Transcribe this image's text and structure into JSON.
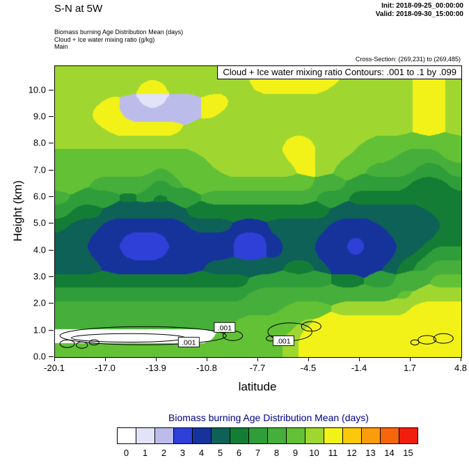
{
  "header": {
    "title": "S-N at 5W",
    "init": "Init: 2018-09-25_00:00:00",
    "valid": "Valid: 2018-09-30_15:00:00",
    "sub1": "Biomass burning Age Distribution Mean   (days)",
    "sub2": "Cloud + Ice water mixing ratio   (g/kg)",
    "sub3": "Main",
    "cross_section": "Cross-Section: (269,231) to (269,485)"
  },
  "plot": {
    "banner": "Cloud + Ice water mixing ratio Contours: .001 to .1 by .099",
    "xlabel": "latitude",
    "ylabel": "Height (km)",
    "x_ticks": [
      "-20.1",
      "-17.0",
      "-13.9",
      "-10.8",
      "-7.7",
      "-4.5",
      "-1.4",
      "1.7",
      "4.8"
    ],
    "y_ticks": [
      "0.0",
      "1.0",
      "2.0",
      "3.0",
      "4.0",
      "5.0",
      "6.0",
      "7.0",
      "8.0",
      "9.0",
      "10.0"
    ]
  },
  "chart_data": {
    "type": "heatmap",
    "title": "Biomass burning Age Distribution Mean (days)",
    "xlabel": "latitude",
    "ylabel": "Height (km)",
    "x_range": [
      -20.1,
      4.8
    ],
    "y_range_km": [
      0,
      10.9
    ],
    "levels": [
      0,
      1,
      2,
      3,
      4,
      5,
      6,
      7,
      8,
      9,
      10,
      11,
      12,
      13,
      14,
      15
    ],
    "palette": [
      "#ffffff",
      "#e2e2f8",
      "#bcbcea",
      "#2e40d8",
      "#16339c",
      "#0e6156",
      "#147d35",
      "#2f9e3a",
      "#46ae3a",
      "#62c135",
      "#9fd730",
      "#f2f218",
      "#fcc80c",
      "#fa9c0b",
      "#f8660a",
      "#f01e0e"
    ],
    "x_centers": [
      -19.6,
      -18.6,
      -17.6,
      -16.6,
      -15.6,
      -14.6,
      -13.6,
      -12.6,
      -11.6,
      -10.6,
      -9.6,
      -8.6,
      -7.6,
      -6.6,
      -5.6,
      -4.6,
      -3.6,
      -2.6,
      -1.6,
      -0.6,
      0.4,
      1.4,
      2.4,
      3.4,
      4.4
    ],
    "y_centers": [
      0.26,
      0.78,
      1.3,
      1.82,
      2.34,
      2.86,
      3.37,
      3.89,
      4.41,
      4.93,
      5.45,
      5.97,
      6.49,
      7.01,
      7.53,
      8.04,
      8.56,
      9.08,
      9.6,
      10.12,
      10.64
    ],
    "values": [
      [
        9,
        9,
        9,
        9,
        9,
        9,
        9,
        9,
        9,
        9,
        9,
        9,
        9,
        9,
        10,
        11,
        11,
        11,
        11,
        11,
        11,
        11,
        11,
        11,
        11
      ],
      [
        0,
        0,
        0,
        0,
        0,
        0,
        0,
        0,
        0,
        0,
        9,
        9,
        9,
        9,
        10,
        11,
        11,
        11,
        11,
        11,
        11,
        11,
        11,
        11,
        11
      ],
      [
        8,
        8,
        8,
        8,
        8,
        8,
        8,
        8,
        8,
        8,
        8,
        9,
        9,
        9,
        9,
        10,
        11,
        11,
        11,
        11,
        11,
        11,
        11,
        11,
        11
      ],
      [
        8,
        8,
        8,
        8,
        8,
        8,
        8,
        8,
        8,
        8,
        8,
        8,
        8,
        8,
        9,
        9,
        9,
        10,
        10,
        10,
        10,
        10,
        11,
        11,
        11
      ],
      [
        7,
        7,
        7,
        7,
        7,
        7,
        7,
        7,
        7,
        7,
        7,
        7,
        8,
        8,
        8,
        8,
        8,
        8,
        8,
        8,
        8,
        9,
        10,
        10,
        10
      ],
      [
        6,
        6,
        6,
        6,
        6,
        6,
        6,
        6,
        6,
        6,
        6,
        6,
        7,
        7,
        7,
        7,
        7,
        6,
        6,
        7,
        7,
        8,
        8,
        9,
        9
      ],
      [
        5,
        5,
        5,
        4,
        4,
        4,
        4,
        4,
        4,
        5,
        5,
        5,
        5,
        5,
        6,
        6,
        5,
        4,
        4,
        4,
        5,
        6,
        7,
        8,
        8
      ],
      [
        5,
        5,
        4,
        4,
        3,
        3,
        3,
        4,
        4,
        4,
        4,
        3,
        3,
        4,
        5,
        5,
        4,
        4,
        3,
        4,
        4,
        5,
        6,
        7,
        7
      ],
      [
        5,
        5,
        4,
        4,
        3,
        3,
        3,
        4,
        4,
        4,
        4,
        3,
        3,
        4,
        5,
        5,
        4,
        4,
        3,
        4,
        4,
        5,
        5,
        6,
        6
      ],
      [
        6,
        5,
        5,
        4,
        4,
        4,
        4,
        4,
        5,
        5,
        5,
        4,
        4,
        5,
        5,
        5,
        5,
        4,
        4,
        4,
        5,
        5,
        5,
        5,
        6
      ],
      [
        7,
        6,
        6,
        5,
        5,
        5,
        5,
        5,
        6,
        6,
        6,
        6,
        6,
        6,
        6,
        6,
        6,
        5,
        5,
        5,
        5,
        5,
        5,
        6,
        6
      ],
      [
        8,
        7,
        7,
        7,
        6,
        7,
        6,
        7,
        7,
        8,
        8,
        8,
        8,
        8,
        8,
        8,
        7,
        7,
        6,
        6,
        6,
        6,
        6,
        6,
        6
      ],
      [
        9,
        9,
        8,
        8,
        8,
        8,
        7,
        8,
        9,
        9,
        9,
        9,
        9,
        9,
        9,
        9,
        8,
        8,
        7,
        7,
        7,
        7,
        6,
        6,
        7
      ],
      [
        9,
        9,
        9,
        9,
        9,
        9,
        8,
        9,
        9,
        9,
        10,
        10,
        10,
        10,
        10,
        11,
        10,
        9,
        9,
        8,
        8,
        8,
        7,
        7,
        8
      ],
      [
        9,
        9,
        9,
        9,
        9,
        9,
        9,
        9,
        9,
        10,
        10,
        10,
        10,
        10,
        11,
        11,
        10,
        10,
        9,
        9,
        9,
        8,
        8,
        8,
        9
      ],
      [
        10,
        10,
        10,
        10,
        10,
        10,
        10,
        10,
        10,
        10,
        10,
        10,
        10,
        10,
        11,
        11,
        10,
        10,
        10,
        9,
        9,
        9,
        9,
        9,
        9
      ],
      [
        10,
        10,
        10,
        11,
        11,
        11,
        11,
        11,
        10,
        10,
        10,
        10,
        10,
        10,
        10,
        10,
        10,
        10,
        10,
        10,
        10,
        10,
        11,
        11,
        10
      ],
      [
        10,
        10,
        11,
        11,
        2,
        2,
        2,
        2,
        2,
        11,
        10,
        10,
        10,
        10,
        10,
        10,
        10,
        10,
        10,
        10,
        11,
        10,
        11,
        11,
        10
      ],
      [
        10,
        10,
        10,
        11,
        2,
        1,
        1,
        2,
        2,
        11,
        11,
        10,
        10,
        10,
        10,
        10,
        10,
        10,
        10,
        10,
        10,
        10,
        11,
        11,
        10
      ],
      [
        10,
        10,
        10,
        10,
        10,
        11,
        11,
        10,
        10,
        10,
        10,
        10,
        11,
        11,
        11,
        11,
        11,
        10,
        10,
        10,
        10,
        10,
        11,
        11,
        10
      ],
      [
        10,
        10,
        10,
        10,
        10,
        10,
        10,
        10,
        10,
        10,
        10,
        10,
        11,
        11,
        11,
        11,
        11,
        11,
        10,
        10,
        10,
        10,
        11,
        11,
        10
      ]
    ],
    "contours": {
      "field": "Cloud + Ice water mixing ratio",
      "level_info": ".001 to .1 by .099",
      "blobs": [
        {
          "cx": -14.7,
          "cy": 0.8,
          "rx": 5.1,
          "ry": 0.34
        },
        {
          "cx": -15.6,
          "cy": 0.72,
          "rx": 3.5,
          "ry": 0.16
        },
        {
          "cx": -19.35,
          "cy": 0.5,
          "rx": 0.45,
          "ry": 0.14
        },
        {
          "cx": -18.45,
          "cy": 0.45,
          "rx": 0.35,
          "ry": 0.12
        },
        {
          "cx": -17.7,
          "cy": 0.55,
          "rx": 0.3,
          "ry": 0.1
        },
        {
          "cx": -9.2,
          "cy": 0.8,
          "rx": 0.6,
          "ry": 0.18
        },
        {
          "cx": -5.7,
          "cy": 0.95,
          "rx": 1.35,
          "ry": 0.33
        },
        {
          "cx": -4.4,
          "cy": 1.15,
          "rx": 0.6,
          "ry": 0.18
        },
        {
          "cx": -6.9,
          "cy": 0.7,
          "rx": 0.25,
          "ry": 0.1
        },
        {
          "cx": 2.7,
          "cy": 0.65,
          "rx": 0.55,
          "ry": 0.16
        },
        {
          "cx": 3.7,
          "cy": 0.7,
          "rx": 0.6,
          "ry": 0.18
        },
        {
          "cx": 1.95,
          "cy": 0.55,
          "rx": 0.25,
          "ry": 0.1
        }
      ],
      "labels": [
        {
          "x": -9.7,
          "y": 1.1,
          "text": ".001"
        },
        {
          "x": -11.9,
          "y": 0.55,
          "text": ".001"
        },
        {
          "x": -6.1,
          "y": 0.6,
          "text": ".001"
        }
      ]
    }
  },
  "colorbar": {
    "title": "Biomass burning Age Distribution Mean  (days)",
    "labels": [
      "0",
      "1",
      "2",
      "3",
      "4",
      "5",
      "6",
      "7",
      "8",
      "9",
      "10",
      "11",
      "12",
      "13",
      "14",
      "15"
    ],
    "colors": [
      "#ffffff",
      "#e2e2f8",
      "#bcbcea",
      "#2e40d8",
      "#16339c",
      "#0e6156",
      "#147d35",
      "#2f9e3a",
      "#46ae3a",
      "#62c135",
      "#9fd730",
      "#f2f218",
      "#fcc80c",
      "#fa9c0b",
      "#f8660a",
      "#f01e0e"
    ]
  }
}
